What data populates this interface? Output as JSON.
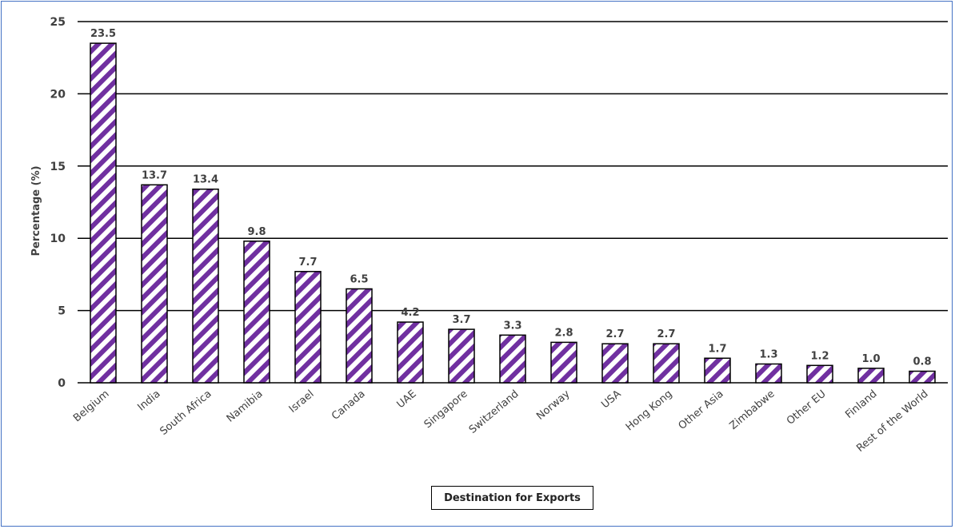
{
  "chart_data": {
    "type": "bar",
    "categories": [
      "Belgium",
      "India",
      "South Africa",
      "Namibia",
      "Israel",
      "Canada",
      "UAE",
      "Singapore",
      "Switzerland",
      "Norway",
      "USA",
      "Hong Kong",
      "Other Asia",
      "Zimbabwe",
      "Other EU",
      "Finland",
      "Rest of the World"
    ],
    "values": [
      23.5,
      13.7,
      13.4,
      9.8,
      7.7,
      6.5,
      4.2,
      3.7,
      3.3,
      2.8,
      2.7,
      2.7,
      1.7,
      1.3,
      1.2,
      1.0,
      0.8
    ],
    "data_labels": [
      "23.5",
      "13.7",
      "13.4",
      "9.8",
      "7.7",
      "6.5",
      "4.2",
      "3.7",
      "3.3",
      "2.8",
      "2.7",
      "2.7",
      "1.7",
      "1.3",
      "1.2",
      "1.0",
      "0.8"
    ],
    "title": "",
    "xlabel": "Destination for Exports",
    "ylabel": "Percentage (%)",
    "ylim": [
      0,
      25
    ],
    "yticks": [
      "0",
      "5",
      "10",
      "15",
      "20",
      "25"
    ],
    "grid": true,
    "bar_colors": {
      "fill": "#ffffff",
      "stripe": "#7030a0",
      "outline": "#000000"
    }
  }
}
